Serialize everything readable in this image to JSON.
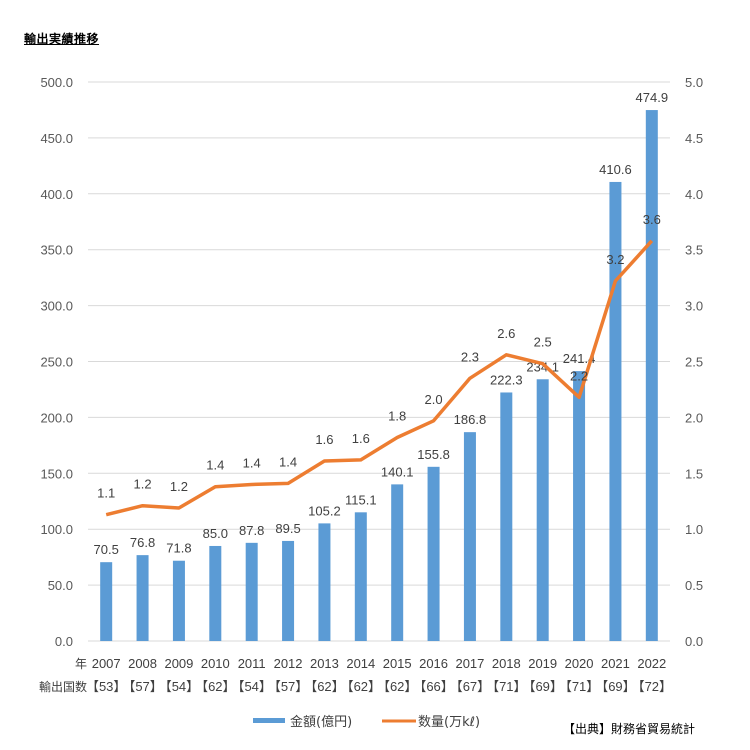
{
  "chart_data": {
    "type": "bar",
    "title": "輸出実績推移",
    "categories": [
      "2007",
      "2008",
      "2009",
      "2010",
      "2011",
      "2012",
      "2013",
      "2014",
      "2015",
      "2016",
      "2017",
      "2018",
      "2019",
      "2020",
      "2021",
      "2022"
    ],
    "x_row_label": "年",
    "countries_row_label": "輸出国数",
    "countries": [
      "【53】",
      "【57】",
      "【54】",
      "【62】",
      "【54】",
      "【57】",
      "【62】",
      "【62】",
      "【62】",
      "【66】",
      "【67】",
      "【71】",
      "【69】",
      "【71】",
      "【69】",
      "【72】"
    ],
    "series": [
      {
        "name": "金額(億円)",
        "type": "bar",
        "axis": "left",
        "color": "#5b9bd5",
        "values": [
          70.5,
          76.8,
          71.8,
          85.0,
          87.8,
          89.5,
          105.2,
          115.1,
          140.1,
          155.8,
          186.8,
          222.3,
          234.1,
          241.4,
          410.6,
          474.9
        ],
        "labels": [
          "70.5",
          "76.8",
          "71.8",
          "85.0",
          "87.8",
          "89.5",
          "105.2",
          "115.1",
          "140.1",
          "155.8",
          "186.8",
          "222.3",
          "234.1",
          "241.4",
          "410.6",
          "474.9"
        ]
      },
      {
        "name": "数量(万kℓ)",
        "type": "line",
        "axis": "right",
        "color": "#ed7d31",
        "values": [
          1.13,
          1.21,
          1.19,
          1.38,
          1.4,
          1.41,
          1.61,
          1.62,
          1.82,
          1.97,
          2.35,
          2.56,
          2.48,
          2.18,
          3.22,
          3.58
        ],
        "labels": [
          "1.1",
          "1.2",
          "1.2",
          "1.4",
          "1.4",
          "1.4",
          "1.6",
          "1.6",
          "1.8",
          "2.0",
          "2.3",
          "2.6",
          "2.5",
          "2.2",
          "3.2",
          "3.6"
        ]
      }
    ],
    "ylim_left": [
      0,
      500
    ],
    "ylim_right": [
      0,
      5
    ],
    "left_ticks": [
      "0.0",
      "50.0",
      "100.0",
      "150.0",
      "200.0",
      "250.0",
      "300.0",
      "350.0",
      "400.0",
      "450.0",
      "500.0"
    ],
    "right_ticks": [
      "0.0",
      "0.5",
      "1.0",
      "1.5",
      "2.0",
      "2.5",
      "3.0",
      "3.5",
      "4.0",
      "4.5",
      "5.0"
    ],
    "grid": true,
    "legend_position": "bottom"
  },
  "source": "【出典】財務省貿易統計"
}
